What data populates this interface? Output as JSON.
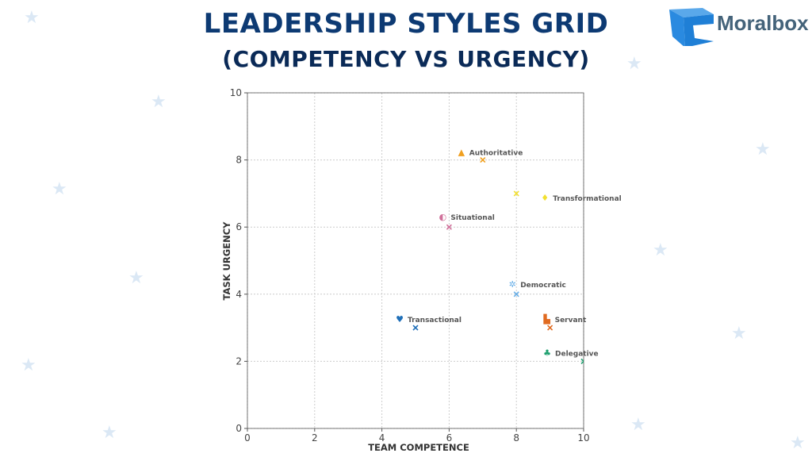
{
  "header": {
    "title_line1": "LEADERSHIP STYLES GRID",
    "title_line2": "(COMPETENCY VS URGENCY)"
  },
  "logo": {
    "text": "Moralbox",
    "color": "#2a8ae0"
  },
  "chart_data": {
    "type": "scatter",
    "xlabel": "TEAM COMPETENCE",
    "ylabel": "TASK URGENCY",
    "xlim": [
      0,
      10
    ],
    "ylim": [
      0,
      10
    ],
    "xticks": [
      0,
      2,
      4,
      6,
      8,
      10
    ],
    "yticks": [
      0,
      2,
      4,
      6,
      8,
      10
    ],
    "grid": true,
    "marker": "x",
    "points": [
      {
        "label": "Authoritative",
        "x": 7,
        "y": 8,
        "color": "#f0a020",
        "icon": "mountain-flag-icon"
      },
      {
        "label": "Transformational",
        "x": 8,
        "y": 7,
        "color": "#f2e030",
        "icon": "person-transform-icon"
      },
      {
        "label": "Situational",
        "x": 6,
        "y": 6,
        "color": "#d0709a",
        "icon": "gauge-person-icon"
      },
      {
        "label": "Democratic",
        "x": 8,
        "y": 4,
        "color": "#6ab0e8",
        "icon": "network-people-icon"
      },
      {
        "label": "Transactional",
        "x": 5,
        "y": 3,
        "color": "#1f6fb8",
        "icon": "handshake-icon"
      },
      {
        "label": "Servant",
        "x": 9,
        "y": 3,
        "color": "#e06a20",
        "icon": "stairs-people-icon"
      },
      {
        "label": "Delegative",
        "x": 10,
        "y": 2,
        "color": "#20a070",
        "icon": "team-delegation-icon"
      }
    ]
  }
}
